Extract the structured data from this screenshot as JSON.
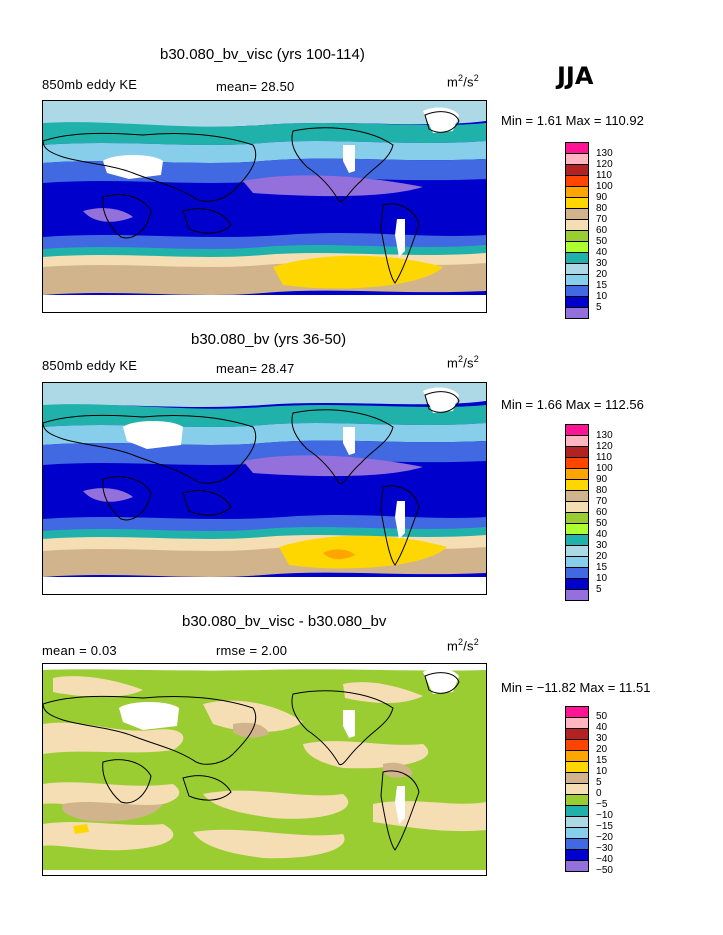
{
  "season": "JJA",
  "panels": [
    {
      "title": "b30.080_bv_visc (yrs 100-114)",
      "left_label": "850mb eddy KE",
      "center_label": "mean=  28.50",
      "units_base": "m",
      "units_exp1": "2",
      "units_mid": "/s",
      "units_exp2": "2",
      "minmax": "Min =    1.61  Max = 110.92",
      "scheme": "ke",
      "colorbar_labels": [
        "130",
        "120",
        "110",
        "100",
        "90",
        "80",
        "70",
        "60",
        "50",
        "40",
        "30",
        "20",
        "15",
        "10",
        "5"
      ]
    },
    {
      "title": "b30.080_bv (yrs 36-50)",
      "left_label": "850mb eddy KE",
      "center_label": "mean=  28.47",
      "units_base": "m",
      "units_exp1": "2",
      "units_mid": "/s",
      "units_exp2": "2",
      "minmax": "Min =    1.66  Max = 112.56",
      "scheme": "ke",
      "colorbar_labels": [
        "130",
        "120",
        "110",
        "100",
        "90",
        "80",
        "70",
        "60",
        "50",
        "40",
        "30",
        "20",
        "15",
        "10",
        "5"
      ]
    },
    {
      "title": "b30.080_bv_visc - b30.080_bv",
      "left_label": "mean =    0.03",
      "center_label": "rmse =    2.00",
      "units_base": "m",
      "units_exp1": "2",
      "units_mid": "/s",
      "units_exp2": "2",
      "minmax": "Min = −11.82  Max =   11.51",
      "scheme": "diff",
      "colorbar_labels": [
        "50",
        "40",
        "30",
        "20",
        "15",
        "10",
        "5",
        "0",
        "−5",
        "−10",
        "−15",
        "−20",
        "−30",
        "−40",
        "−50"
      ]
    }
  ],
  "colors": {
    "ke": [
      "#ff1493",
      "#ffb6c1",
      "#b22222",
      "#ff4500",
      "#ffa500",
      "#ffd700",
      "#d2b48c",
      "#f5deb3",
      "#9acd32",
      "#adff2f",
      "#20b2aa",
      "#add8e6",
      "#87ceeb",
      "#4169e1",
      "#0000cd",
      "#9370db"
    ],
    "diff": [
      "#ff1493",
      "#ffb6c1",
      "#b22222",
      "#ff4500",
      "#ffa500",
      "#ffd700",
      "#d2b48c",
      "#f5deb3",
      "#9acd32",
      "#20b2aa",
      "#add8e6",
      "#87ceeb",
      "#4169e1",
      "#0000cd",
      "#9370db"
    ]
  }
}
